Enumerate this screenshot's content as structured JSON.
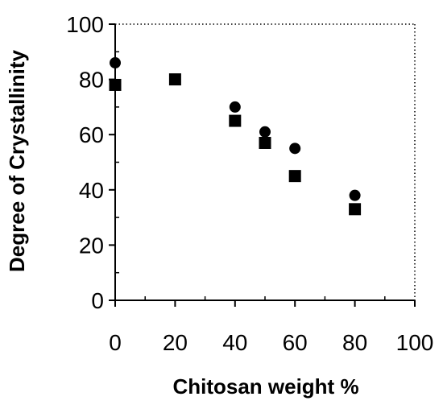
{
  "chart_data": {
    "type": "scatter",
    "xlabel": "Chitosan weight %",
    "ylabel": "Degree of Crystallinity",
    "xlim": [
      0,
      100
    ],
    "ylim": [
      0,
      100
    ],
    "x_ticks": [
      0,
      20,
      40,
      60,
      80,
      100
    ],
    "y_ticks": [
      0,
      20,
      40,
      60,
      80,
      100
    ],
    "grid": false,
    "plot_frame": "dotted border",
    "series": [
      {
        "marker": "circle",
        "color": "#000000",
        "points": [
          {
            "x": 0,
            "y": 86
          },
          {
            "x": 20,
            "y": 80
          },
          {
            "x": 40,
            "y": 70
          },
          {
            "x": 50,
            "y": 61
          },
          {
            "x": 60,
            "y": 55
          },
          {
            "x": 80,
            "y": 38
          }
        ]
      },
      {
        "marker": "square",
        "color": "#000000",
        "points": [
          {
            "x": 0,
            "y": 78
          },
          {
            "x": 20,
            "y": 80
          },
          {
            "x": 40,
            "y": 65
          },
          {
            "x": 50,
            "y": 57
          },
          {
            "x": 60,
            "y": 45
          },
          {
            "x": 80,
            "y": 33
          }
        ]
      }
    ]
  }
}
